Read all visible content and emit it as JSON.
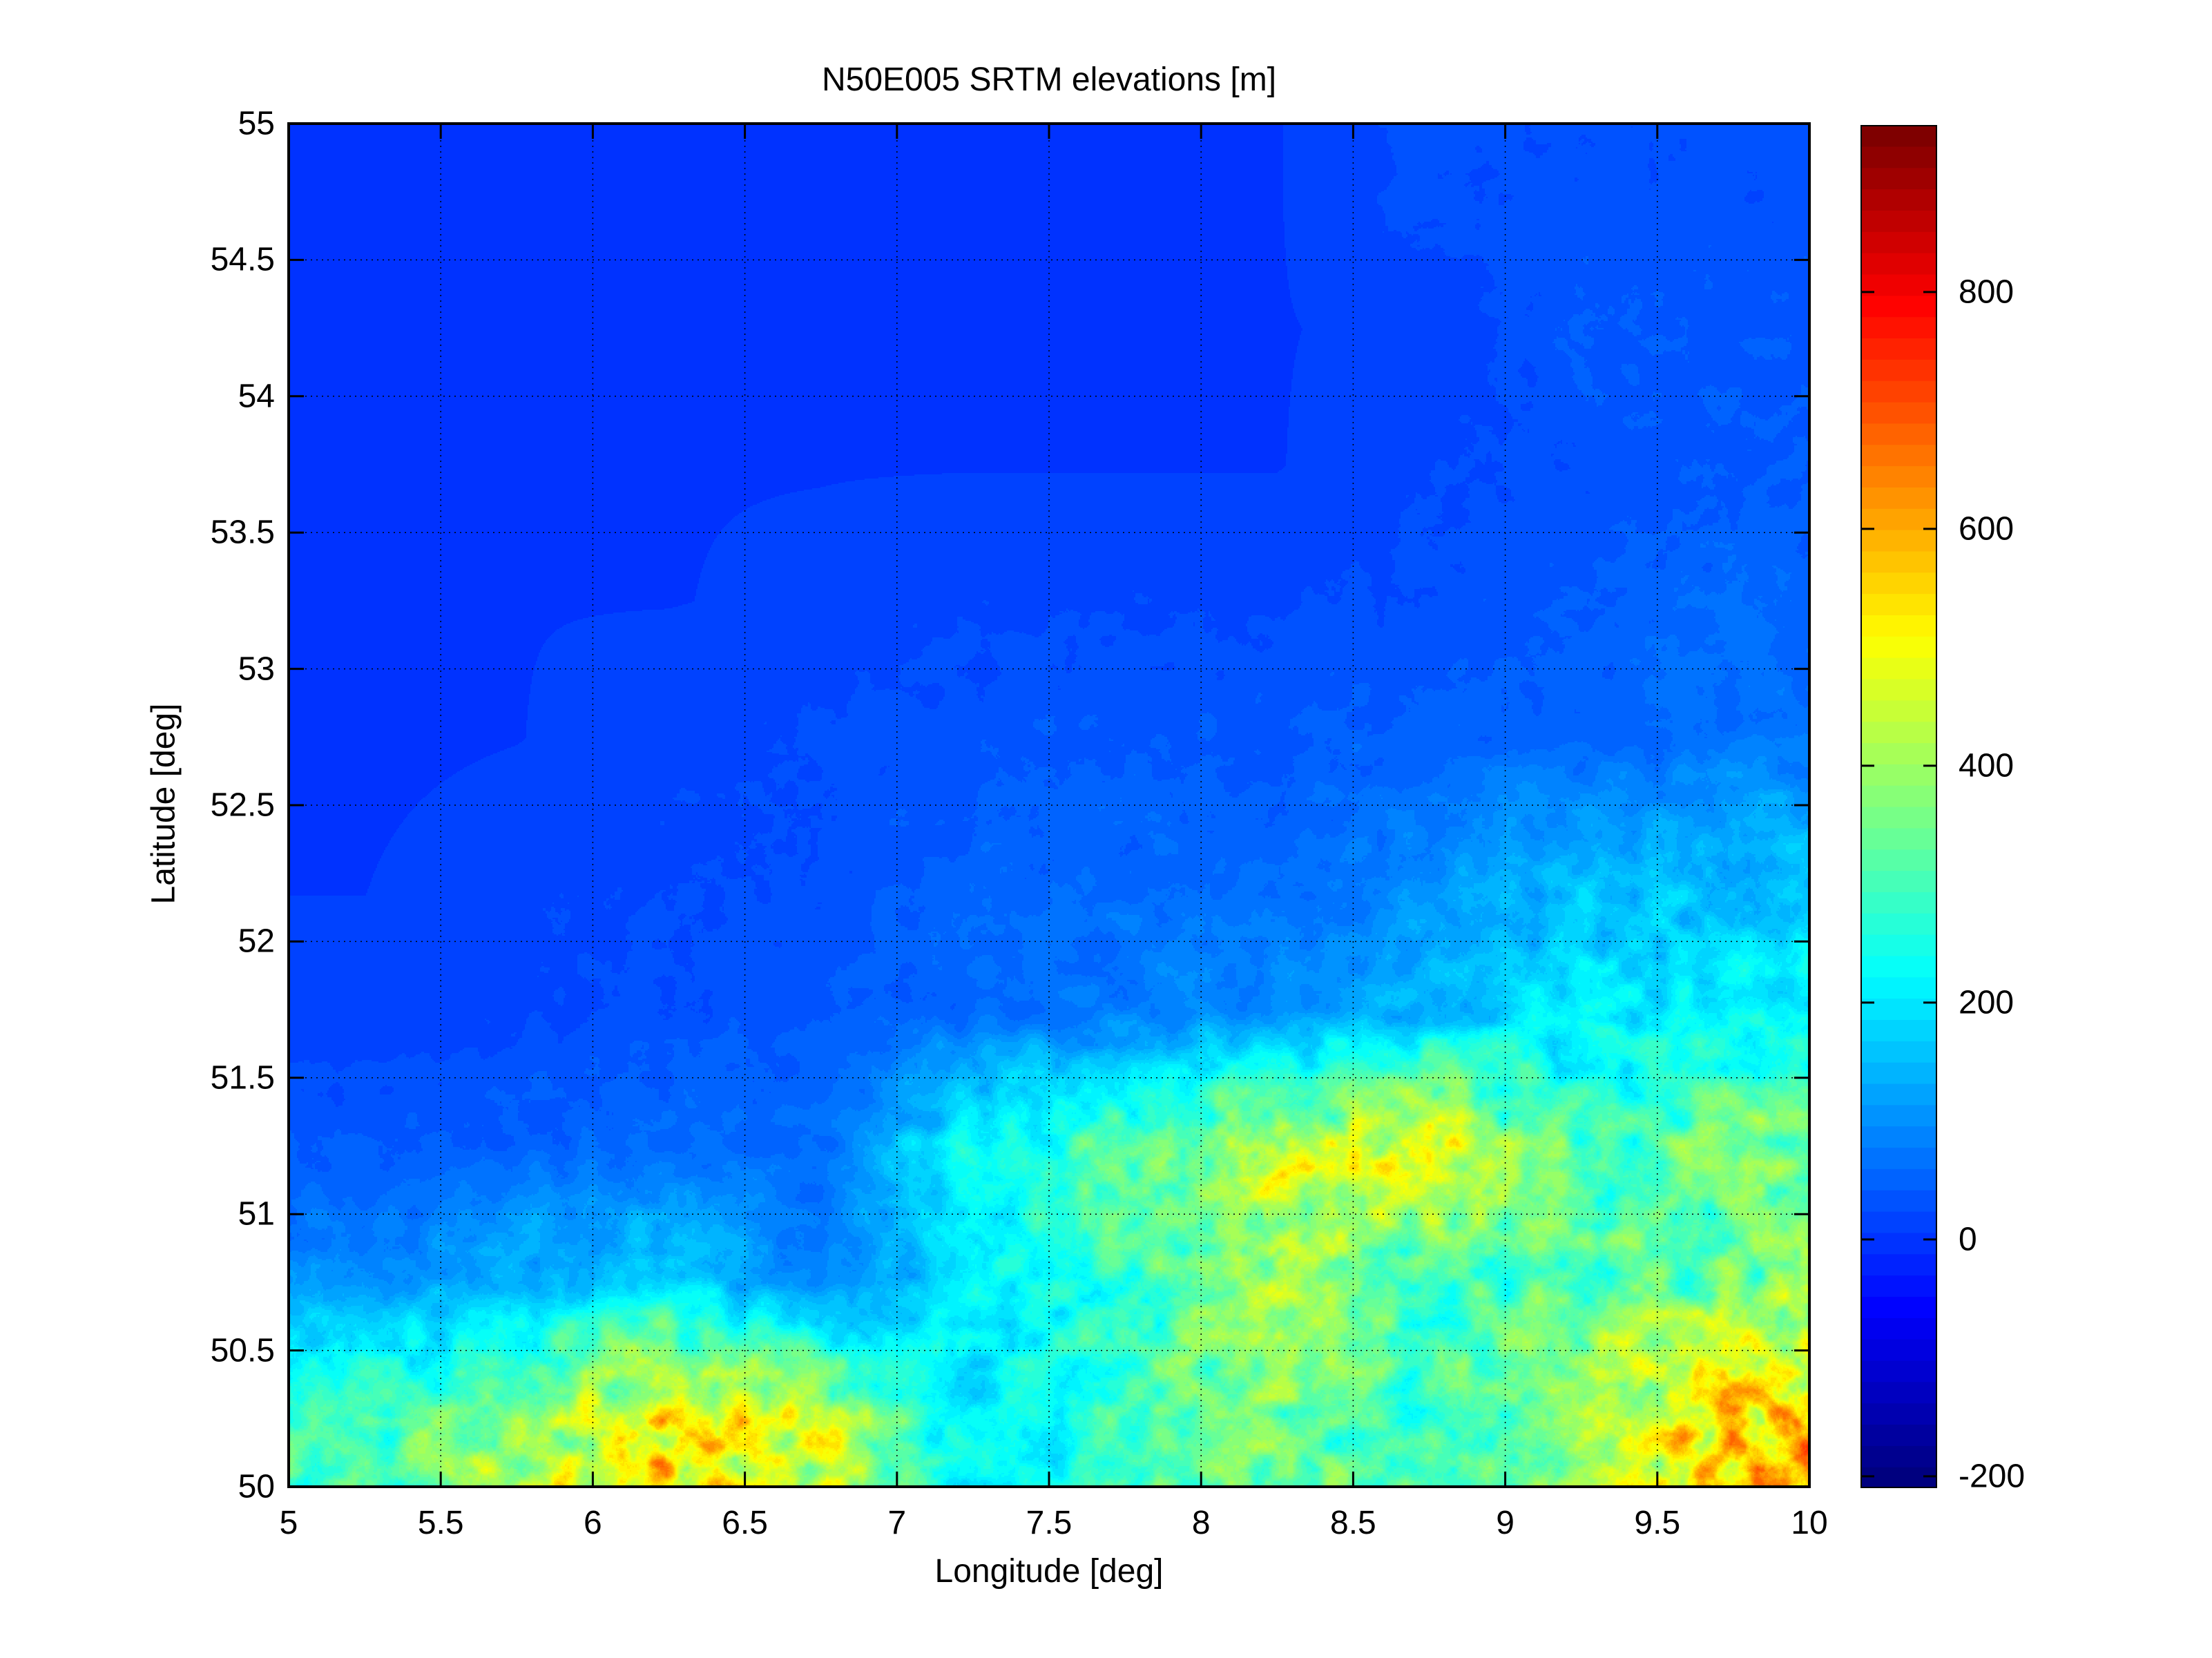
{
  "chart_data": {
    "type": "heatmap",
    "title": "N50E005 SRTM elevations [m]",
    "xlabel": "Longitude [deg]",
    "ylabel": "Latitude [deg]",
    "xlim": [
      5,
      10
    ],
    "ylim": [
      50,
      55
    ],
    "xticks": [
      "5",
      "5.5",
      "6",
      "6.5",
      "7",
      "7.5",
      "8",
      "8.5",
      "9",
      "9.5",
      "10"
    ],
    "yticks": [
      "50",
      "50.5",
      "51",
      "51.5",
      "52",
      "52.5",
      "53",
      "53.5",
      "54",
      "54.5",
      "55"
    ],
    "grid": true,
    "colormap": "jet",
    "colormap_levels": 64,
    "clim": [
      -210,
      941
    ],
    "colorbar": {
      "location": "right",
      "ticks": [
        "-200",
        "0",
        "200",
        "400",
        "600",
        "800"
      ]
    },
    "z_grid_note_units": "m",
    "z_lon_centers": [
      5.25,
      5.75,
      6.25,
      6.75,
      7.25,
      7.75,
      8.25,
      8.75,
      9.25,
      9.75
    ],
    "z_lat_centers": [
      54.75,
      54.25,
      53.75,
      53.25,
      52.75,
      52.25,
      51.75,
      51.25,
      50.75,
      50.25
    ],
    "z": [
      [
        5,
        5,
        5,
        5,
        5,
        5,
        5,
        30,
        30,
        30
      ],
      [
        5,
        5,
        5,
        5,
        5,
        5,
        5,
        10,
        40,
        40
      ],
      [
        5,
        5,
        5,
        5,
        5,
        5,
        5,
        20,
        30,
        40
      ],
      [
        5,
        5,
        5,
        10,
        20,
        20,
        20,
        30,
        40,
        60
      ],
      [
        0,
        5,
        20,
        25,
        35,
        40,
        40,
        50,
        50,
        70
      ],
      [
        5,
        20,
        20,
        30,
        50,
        60,
        60,
        100,
        150,
        160
      ],
      [
        10,
        20,
        30,
        40,
        60,
        80,
        100,
        150,
        200,
        220
      ],
      [
        40,
        50,
        60,
        60,
        250,
        330,
        450,
        500,
        300,
        350
      ],
      [
        100,
        150,
        200,
        80,
        200,
        300,
        400,
        300,
        320,
        350
      ],
      [
        300,
        400,
        550,
        450,
        200,
        300,
        350,
        300,
        400,
        600
      ]
    ]
  }
}
